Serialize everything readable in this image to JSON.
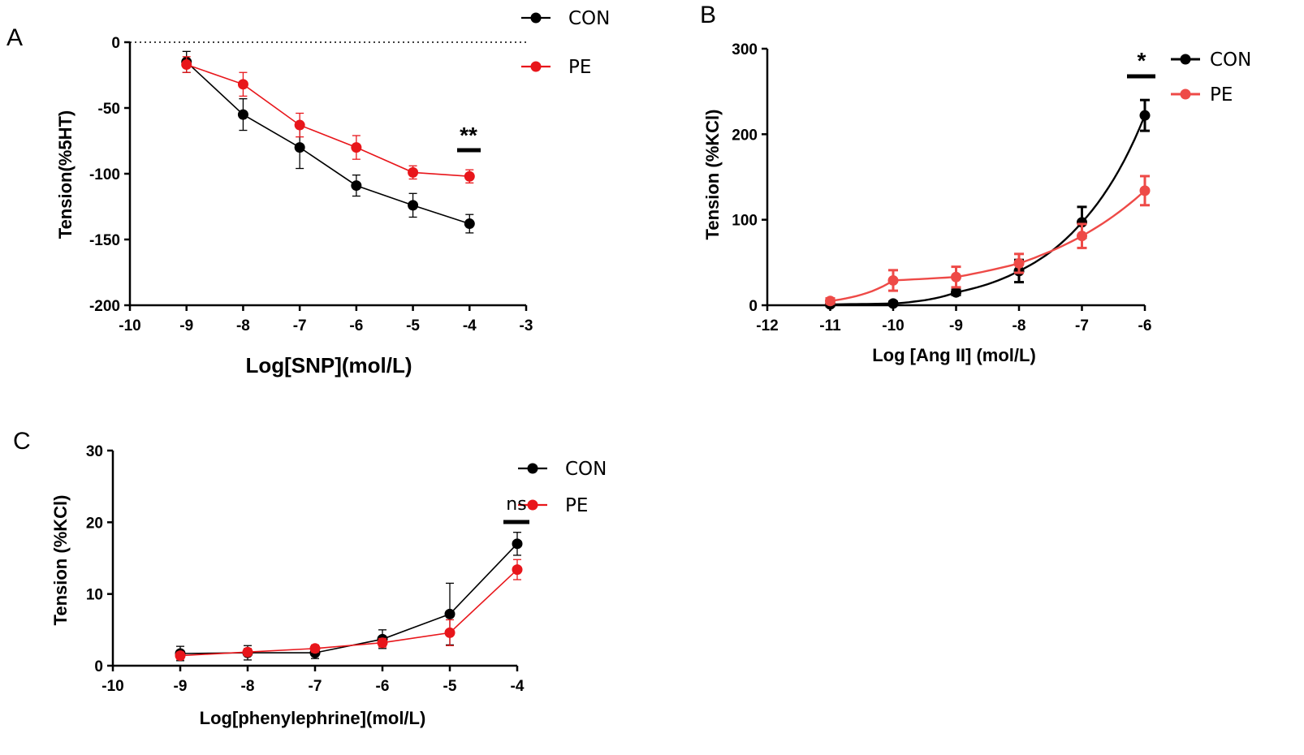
{
  "colors": {
    "con": "#000000",
    "pe_a": "#e8161b",
    "pe_b": "#ee4a47",
    "pe_c": "#e8161b"
  },
  "chart_data": [
    {
      "panel": "A",
      "type": "line",
      "xlabel": "Log[SNP](mol/L)",
      "ylabel": "Tension(%5HT)",
      "xlim": [
        -10,
        -3
      ],
      "ylim": [
        -200,
        0
      ],
      "xticks": [
        "-10",
        "-9",
        "-8",
        "-7",
        "-6",
        "-5",
        "-4",
        "-3"
      ],
      "yticks": [
        "0",
        "-50",
        "-100",
        "-150",
        "-200"
      ],
      "reference_line": 0,
      "legend": [
        "CON",
        "PE"
      ],
      "significance": "**",
      "series": [
        {
          "name": "CON",
          "color": "#000000",
          "x": [
            -9,
            -8,
            -7,
            -6,
            -5,
            -4
          ],
          "y": [
            -15,
            -55,
            -80,
            -109,
            -124,
            -138
          ],
          "err": [
            8,
            12,
            16,
            8,
            9,
            7
          ]
        },
        {
          "name": "PE",
          "color": "#e8161b",
          "x": [
            -9,
            -8,
            -7,
            -6,
            -5,
            -4
          ],
          "y": [
            -17,
            -32,
            -63,
            -80,
            -99,
            -102
          ],
          "err": [
            6,
            9,
            9,
            9,
            5,
            5
          ]
        }
      ]
    },
    {
      "panel": "B",
      "type": "scatter",
      "xlabel": "Log [Ang II] (mol/L)",
      "ylabel": "Tension (%KCl)",
      "xlim": [
        -12,
        -6
      ],
      "ylim": [
        0,
        300
      ],
      "xticks": [
        "-12",
        "-11",
        "-10",
        "-9",
        "-8",
        "-7",
        "-6"
      ],
      "yticks": [
        "0",
        "100",
        "200",
        "300"
      ],
      "legend": [
        "CON",
        "PE"
      ],
      "significance": "*",
      "fitted_curve": true,
      "series": [
        {
          "name": "CON",
          "color": "#000000",
          "x": [
            -11,
            -10,
            -9,
            -8,
            -7,
            -6
          ],
          "y": [
            1,
            2,
            15,
            40,
            97,
            222
          ],
          "err": [
            2,
            2,
            3,
            13,
            18,
            18
          ]
        },
        {
          "name": "PE",
          "color": "#ee4a47",
          "x": [
            -11,
            -10,
            -9,
            -8,
            -7,
            -6
          ],
          "y": [
            5,
            29,
            33,
            49,
            81,
            134
          ],
          "err": [
            3,
            12,
            12,
            11,
            14,
            17
          ]
        }
      ]
    },
    {
      "panel": "C",
      "type": "line",
      "xlabel": "Log[phenylephrine](mol/L)",
      "ylabel": "Tension (%KCl)",
      "xlim": [
        -10,
        -4
      ],
      "ylim": [
        0,
        30
      ],
      "xticks": [
        "-10",
        "-9",
        "-8",
        "-7",
        "-6",
        "-5",
        "-4"
      ],
      "yticks": [
        "0",
        "10",
        "20",
        "30"
      ],
      "legend": [
        "CON",
        "PE"
      ],
      "significance": "ns",
      "series": [
        {
          "name": "CON",
          "color": "#000000",
          "x": [
            -9,
            -8,
            -7,
            -6,
            -5,
            -4
          ],
          "y": [
            1.7,
            1.8,
            1.8,
            3.7,
            7.2,
            17.0
          ],
          "err": [
            1.0,
            1.0,
            0.8,
            1.3,
            4.3,
            1.6
          ]
        },
        {
          "name": "PE",
          "color": "#e8161b",
          "x": [
            -9,
            -8,
            -7,
            -6,
            -5,
            -4
          ],
          "y": [
            1.4,
            1.9,
            2.4,
            3.2,
            4.6,
            13.4
          ],
          "err": [
            0.5,
            0.5,
            0.5,
            0.6,
            1.8,
            1.4
          ]
        }
      ]
    }
  ]
}
